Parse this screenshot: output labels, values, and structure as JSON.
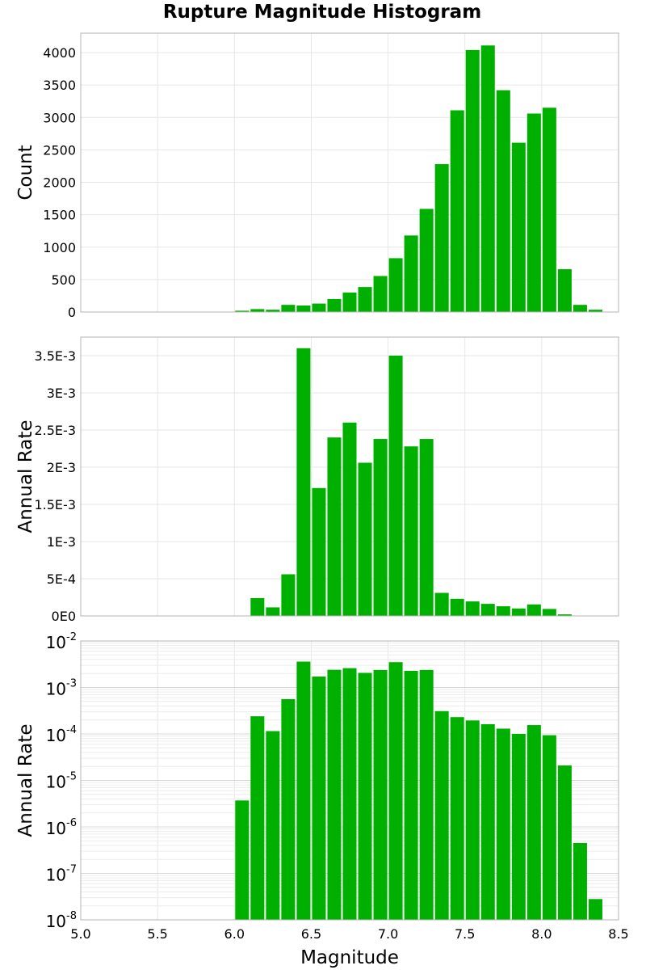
{
  "title": "Rupture Magnitude Histogram",
  "colors": {
    "bar": "#00B000",
    "bar_edge": "#ffffff",
    "grid": "#e6e6e6",
    "frame": "#b4b4b4"
  },
  "chart_data": [
    {
      "type": "bar",
      "ylabel": "Count",
      "xlim": [
        5.0,
        8.5
      ],
      "ylim": [
        0,
        4300
      ],
      "yticks": [
        0,
        500,
        1000,
        1500,
        2000,
        2500,
        3000,
        3500,
        4000
      ],
      "ytick_labels": [
        "0",
        "500",
        "1000",
        "1500",
        "2000",
        "2500",
        "3000",
        "3500",
        "4000"
      ],
      "bin_width": 0.1,
      "x": [
        6.05,
        6.15,
        6.25,
        6.35,
        6.45,
        6.55,
        6.65,
        6.75,
        6.85,
        6.95,
        7.05,
        7.15,
        7.25,
        7.35,
        7.45,
        7.55,
        7.65,
        7.75,
        7.85,
        7.95,
        8.05,
        8.15,
        8.25,
        8.35
      ],
      "values": [
        20,
        45,
        35,
        110,
        100,
        130,
        200,
        300,
        385,
        555,
        830,
        1180,
        1590,
        2280,
        3110,
        4040,
        4110,
        3420,
        2610,
        3060,
        3150,
        660,
        110,
        35
      ],
      "grid": true
    },
    {
      "type": "bar",
      "ylabel": "Annual Rate",
      "xlim": [
        5.0,
        8.5
      ],
      "ylim": [
        0,
        0.00375
      ],
      "yticks": [
        0,
        0.0005,
        0.001,
        0.0015,
        0.002,
        0.0025,
        0.003,
        0.0035
      ],
      "ytick_labels": [
        "0E0",
        "5E-4",
        "1E-3",
        "1.5E-3",
        "2E-3",
        "2.5E-3",
        "3E-3",
        "3.5E-3"
      ],
      "bin_width": 0.1,
      "x": [
        6.05,
        6.15,
        6.25,
        6.35,
        6.45,
        6.55,
        6.65,
        6.75,
        6.85,
        6.95,
        7.05,
        7.15,
        7.25,
        7.35,
        7.45,
        7.55,
        7.65,
        7.75,
        7.85,
        7.95,
        8.05,
        8.15,
        8.25,
        8.35
      ],
      "values": [
        3.7e-06,
        0.00024,
        0.000115,
        0.00056,
        0.0036,
        0.00172,
        0.0024,
        0.0026,
        0.00206,
        0.00238,
        0.0035,
        0.00228,
        0.00238,
        0.00031,
        0.00023,
        0.000195,
        0.000162,
        0.00013,
        0.0001,
        0.000155,
        9.4e-05,
        2.1e-05,
        4.5e-07,
        2.8e-08
      ],
      "grid": true
    },
    {
      "type": "bar",
      "ylabel": "Annual Rate",
      "xlabel": "Magnitude",
      "yscale": "log",
      "xlim": [
        5.0,
        8.5
      ],
      "ylim": [
        1e-08,
        0.01
      ],
      "xticks": [
        5.0,
        5.5,
        6.0,
        6.5,
        7.0,
        7.5,
        8.0,
        8.5
      ],
      "xtick_labels": [
        "5.0",
        "5.5",
        "6.0",
        "6.5",
        "7.0",
        "7.5",
        "8.0",
        "8.5"
      ],
      "ytick_exponents": [
        "-8",
        "-7",
        "-6",
        "-5",
        "-4",
        "-3",
        "-2"
      ],
      "ytick_base": "10",
      "bin_width": 0.1,
      "x": [
        6.05,
        6.15,
        6.25,
        6.35,
        6.45,
        6.55,
        6.65,
        6.75,
        6.85,
        6.95,
        7.05,
        7.15,
        7.25,
        7.35,
        7.45,
        7.55,
        7.65,
        7.75,
        7.85,
        7.95,
        8.05,
        8.15,
        8.25,
        8.35
      ],
      "values": [
        3.7e-06,
        0.00024,
        0.000115,
        0.00056,
        0.0036,
        0.00172,
        0.0024,
        0.0026,
        0.00206,
        0.00238,
        0.0035,
        0.00228,
        0.00238,
        0.00031,
        0.00023,
        0.000195,
        0.000162,
        0.00013,
        0.0001,
        0.000155,
        9.4e-05,
        2.1e-05,
        4.5e-07,
        2.8e-08
      ],
      "grid": true
    }
  ]
}
